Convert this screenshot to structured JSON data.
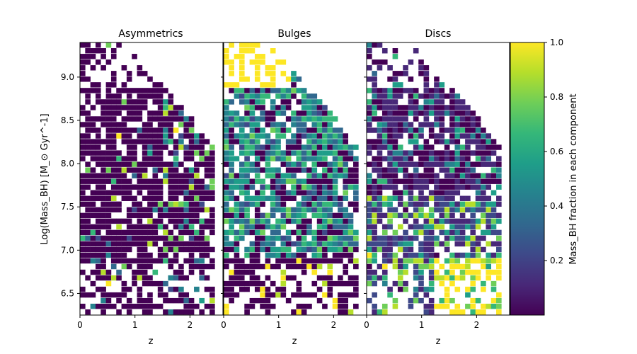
{
  "figure": {
    "ylabel": "Log(Mass_BH) [M_⊙ Gyr^-1]",
    "colorbar_label": "Mass_BH fraction in each component"
  },
  "colorbar": {
    "colormap": "viridis",
    "range": [
      0.0,
      1.0
    ],
    "ticks": [
      "0.2",
      "0.4",
      "0.6",
      "0.8",
      "1.0"
    ],
    "colors": [
      "#440154",
      "#482878",
      "#3e4989",
      "#31688e",
      "#26828e",
      "#1f9e89",
      "#35b779",
      "#6ece58",
      "#b5de2b",
      "#fde725"
    ]
  },
  "chart_data": [
    {
      "type": "heatmap",
      "title": "Asymmetrics",
      "xlabel": "z",
      "ylabel": "Log(Mass_BH) [M_⊙ Gyr^-1]",
      "xlim": [
        0,
        2.5
      ],
      "ylim": [
        6.25,
        9.4
      ],
      "x_ticks": [
        "0",
        "1",
        "2"
      ],
      "y_ticks": [
        "6.5",
        "7.0",
        "7.5",
        "8.0",
        "8.5",
        "9.0"
      ],
      "dominant_value": 0.0,
      "notes": "mostly near 0 (purple) with sparse higher fractions at z > 1.5"
    },
    {
      "type": "heatmap",
      "title": "Bulges",
      "xlabel": "z",
      "xlim": [
        0,
        2.5
      ],
      "ylim": [
        6.25,
        9.4
      ],
      "x_ticks": [
        "0",
        "1",
        "2"
      ],
      "dominant_value": 0.4,
      "notes": "mixed fractions 0.2-0.7, yellow (1.0) at top high-mass low-z region"
    },
    {
      "type": "heatmap",
      "title": "Discs",
      "xlabel": "z",
      "xlim": [
        0,
        2.5
      ],
      "ylim": [
        6.25,
        9.4
      ],
      "x_ticks": [
        "0",
        "1",
        "2"
      ],
      "dominant_value": 0.2,
      "notes": "mostly low fractions, yellow (1.0) concentrated at low mass, z 1.5-2.5"
    }
  ]
}
